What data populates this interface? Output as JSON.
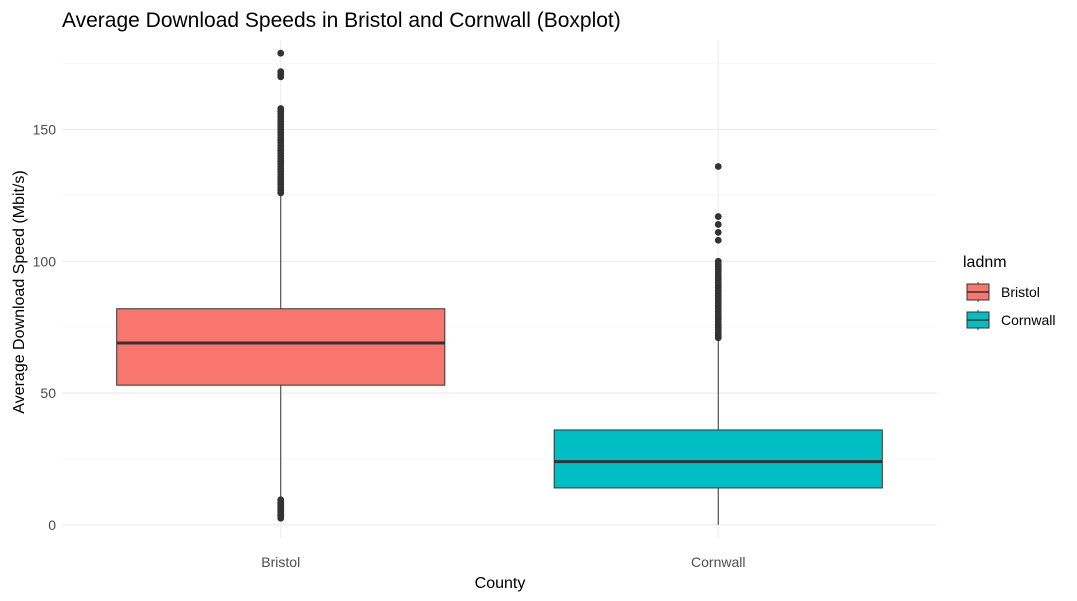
{
  "chart_data": {
    "type": "boxplot",
    "title": "Average Download Speeds in Bristol and Cornwall (Boxplot)",
    "xlabel": "County",
    "ylabel": "Average Download Speed (Mbit/s)",
    "categories": [
      "Bristol",
      "Cornwall"
    ],
    "ylim": [
      -5,
      184
    ],
    "yticks": [
      0,
      50,
      100,
      150
    ],
    "grid": true,
    "legend": {
      "title": "ladnm",
      "position": "right",
      "entries": [
        {
          "label": "Bristol",
          "color": "#F8766D"
        },
        {
          "label": "Cornwall",
          "color": "#00BFC4"
        }
      ]
    },
    "series": [
      {
        "name": "Bristol",
        "color": "#F8766D",
        "stats": {
          "whisker_low": 10,
          "q1": 53,
          "median": 69,
          "q3": 82,
          "whisker_high": 125
        },
        "outliers": [
          2.5,
          3,
          3.5,
          4,
          4.5,
          5,
          5.5,
          6,
          6.5,
          7,
          7.5,
          8,
          8.5,
          9,
          9.5,
          126,
          127,
          128,
          129,
          130,
          131,
          132,
          133,
          134,
          135,
          136,
          137,
          138,
          139,
          140,
          141,
          142,
          143,
          144,
          145,
          146,
          147,
          148,
          149,
          150,
          151,
          152,
          153,
          154,
          155,
          156,
          157,
          158,
          170,
          171,
          172,
          179
        ]
      },
      {
        "name": "Cornwall",
        "color": "#00BFC4",
        "stats": {
          "whisker_low": 0,
          "q1": 14,
          "median": 24,
          "q3": 36,
          "whisker_high": 70
        },
        "outliers": [
          71,
          72,
          73,
          74,
          75,
          76,
          77,
          78,
          79,
          80,
          81,
          82,
          83,
          84,
          85,
          86,
          87,
          88,
          89,
          90,
          91,
          92,
          93,
          94,
          95,
          96,
          97,
          98,
          99,
          100,
          108,
          111,
          114,
          117,
          136
        ]
      }
    ]
  }
}
